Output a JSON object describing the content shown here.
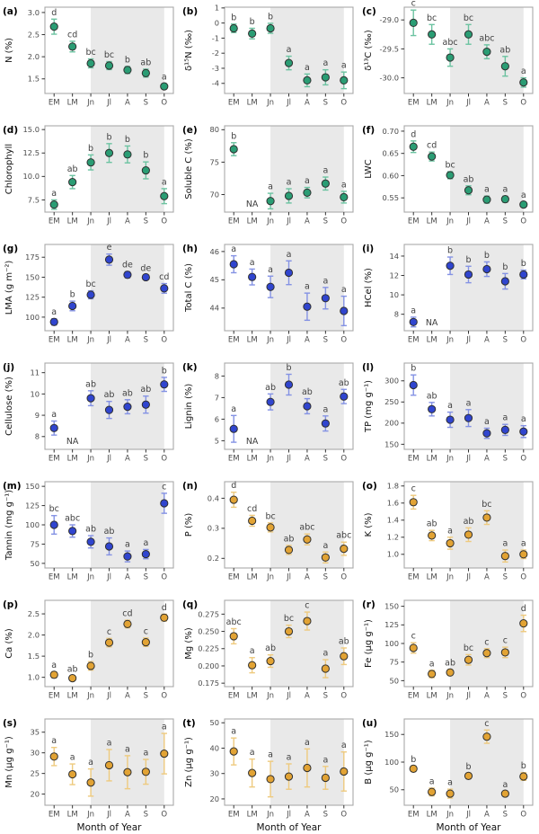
{
  "figure": {
    "style": {
      "band_color": "#e9e9e9",
      "frame_color": "#a9a9a9",
      "tick_color": "#333333",
      "tick_label_color": "#4a4a4a",
      "letter_color": "#3f3f3f",
      "tag_color": "#000000",
      "outline_color": "#2f2f2f",
      "groups": {
        "green": {
          "fill": "#2a9d74",
          "err": "#6cc3a1"
        },
        "blue": {
          "fill": "#3045cf",
          "err": "#8492e4"
        },
        "orange": {
          "fill": "#e2a334",
          "err": "#eeca7e"
        }
      }
    }
  },
  "chart_data": {
    "type": "scatter",
    "description": "21-panel leaf-trait seasonal means with SE error bars and significance letters",
    "x_categories": [
      "EM",
      "LM",
      "Jn",
      "Jl",
      "A",
      "S",
      "O"
    ],
    "xlabel": "Month of Year",
    "shaded_band_x": [
      2.5,
      6.5
    ],
    "na_label": "NA",
    "panels": [
      {
        "id": "a",
        "tag": "(a)",
        "ylabel": "N (%)",
        "group": "green",
        "ylim": [
          1.17,
          3.12
        ],
        "yticks": [
          [
            1.5,
            "1.5"
          ],
          [
            2.0,
            "2.0"
          ],
          [
            2.5,
            "2.5"
          ],
          [
            3.0,
            "3.0"
          ]
        ],
        "values": [
          2.68,
          2.23,
          1.85,
          1.8,
          1.7,
          1.63,
          1.33
        ],
        "errors": [
          0.17,
          0.12,
          0.1,
          0.09,
          0.08,
          0.09,
          0.06
        ],
        "letters": [
          "d",
          "cd",
          "bc",
          "bc",
          "b",
          "ab",
          "a"
        ],
        "na": []
      },
      {
        "id": "b",
        "tag": "(b)",
        "ylabel": "δ¹⁵N (‰)",
        "group": "green",
        "ylim": [
          -4.67,
          1.05
        ],
        "yticks": [
          [
            1,
            "1"
          ],
          [
            0,
            "0"
          ],
          [
            -1,
            "-1"
          ],
          [
            -2,
            "-2"
          ],
          [
            -3,
            "-3"
          ],
          [
            -4,
            "-4"
          ]
        ],
        "values": [
          -0.35,
          -0.7,
          -0.35,
          -2.65,
          -3.8,
          -3.6,
          -3.8
        ],
        "errors": [
          0.28,
          0.35,
          0.33,
          0.45,
          0.42,
          0.5,
          0.55
        ],
        "letters": [
          "b",
          "b",
          "b",
          "a",
          "a",
          "a",
          "a"
        ],
        "na": []
      },
      {
        "id": "c",
        "tag": "(c)",
        "ylabel": "δ¹³C (‰)",
        "group": "green",
        "ylim": [
          -30.27,
          -28.78
        ],
        "yticks": [
          [
            -29.0,
            "-29.0"
          ],
          [
            -29.5,
            "-29.5"
          ],
          [
            -30.0,
            "-30.0"
          ]
        ],
        "values": [
          -29.05,
          -29.25,
          -29.65,
          -29.25,
          -29.55,
          -29.8,
          -30.08
        ],
        "errors": [
          0.22,
          0.17,
          0.15,
          0.17,
          0.12,
          0.17,
          0.08
        ],
        "letters": [
          "c",
          "bc",
          "abc",
          "bc",
          "abc",
          "ab",
          "a"
        ],
        "na": []
      },
      {
        "id": "d",
        "tag": "(d)",
        "ylabel": "Chlorophyll",
        "group": "green",
        "ylim": [
          6.2,
          15.4
        ],
        "yticks": [
          [
            7.5,
            "7.5"
          ],
          [
            10.0,
            "10.0"
          ],
          [
            12.5,
            "12.5"
          ],
          [
            15.0,
            "15.0"
          ]
        ],
        "values": [
          7.0,
          9.4,
          11.5,
          12.5,
          12.35,
          10.65,
          7.9
        ],
        "errors": [
          0.5,
          0.7,
          0.8,
          1.0,
          0.9,
          0.9,
          0.8
        ],
        "letters": [
          "a",
          "ab",
          "b",
          "b",
          "b",
          "b",
          "a"
        ],
        "na": []
      },
      {
        "id": "e",
        "tag": "(e)",
        "ylabel": "Soluble C (%)",
        "group": "green",
        "ylim": [
          67.3,
          80.6
        ],
        "yticks": [
          [
            70,
            "70"
          ],
          [
            75,
            "75"
          ],
          [
            80,
            "80"
          ]
        ],
        "values": [
          77.0,
          null,
          69.0,
          69.8,
          70.3,
          71.7,
          69.6
        ],
        "errors": [
          1.0,
          null,
          1.2,
          1.1,
          0.8,
          1.0,
          0.9
        ],
        "letters": [
          "b",
          null,
          "a",
          "a",
          "a",
          "a",
          "a"
        ],
        "na": [
          1
        ]
      },
      {
        "id": "f",
        "tag": "(f)",
        "ylabel": "LWC",
        "group": "green",
        "ylim": [
          0.518,
          0.712
        ],
        "yticks": [
          [
            0.55,
            "0.55"
          ],
          [
            0.6,
            "0.60"
          ],
          [
            0.65,
            "0.65"
          ],
          [
            0.7,
            "0.70"
          ]
        ],
        "values": [
          0.665,
          0.643,
          0.601,
          0.567,
          0.546,
          0.547,
          0.535
        ],
        "errors": [
          0.013,
          0.01,
          0.008,
          0.01,
          0.008,
          0.007,
          0.006
        ],
        "letters": [
          "d",
          "cd",
          "bc",
          "ab",
          "a",
          "a",
          "a"
        ],
        "na": []
      },
      {
        "id": "g",
        "tag": "(g)",
        "ylabel": "LMA (g m⁻²)",
        "group": "blue",
        "ylim": [
          83,
          191
        ],
        "yticks": [
          [
            100,
            "100"
          ],
          [
            125,
            "125"
          ],
          [
            150,
            "150"
          ],
          [
            175,
            "175"
          ]
        ],
        "values": [
          94,
          114,
          128,
          172,
          153,
          150,
          136
        ],
        "errors": [
          4,
          6,
          5,
          7,
          4,
          3,
          6
        ],
        "letters": [
          "a",
          "b",
          "bc",
          "e",
          "de",
          "de",
          "cd"
        ],
        "na": []
      },
      {
        "id": "h",
        "tag": "(h)",
        "ylabel": "Total C (%)",
        "group": "blue",
        "ylim": [
          43.2,
          46.25
        ],
        "yticks": [
          [
            44,
            "44"
          ],
          [
            45,
            "45"
          ],
          [
            46,
            "46"
          ]
        ],
        "values": [
          45.55,
          45.1,
          44.75,
          45.25,
          44.05,
          44.35,
          43.9
        ],
        "errors": [
          0.3,
          0.28,
          0.38,
          0.42,
          0.48,
          0.38,
          0.52
        ],
        "letters": [
          "a",
          "a",
          "a",
          "a",
          "a",
          "a",
          "a"
        ],
        "na": []
      },
      {
        "id": "i",
        "tag": "(i)",
        "ylabel": "HCel (%)",
        "group": "blue",
        "ylim": [
          6.3,
          15.2
        ],
        "yticks": [
          [
            8,
            "8"
          ],
          [
            10,
            "10"
          ],
          [
            12,
            "12"
          ],
          [
            14,
            "14"
          ]
        ],
        "values": [
          7.2,
          null,
          13.0,
          12.1,
          12.65,
          11.4,
          12.1
        ],
        "errors": [
          0.5,
          null,
          0.9,
          0.85,
          0.75,
          0.8,
          0.45
        ],
        "letters": [
          "a",
          null,
          "b",
          "b",
          "b",
          "b",
          "b"
        ],
        "na": [
          1
        ]
      },
      {
        "id": "j",
        "tag": "(j)",
        "ylabel": "Cellulose (%)",
        "group": "blue",
        "ylim": [
          7.4,
          11.45
        ],
        "yticks": [
          [
            8,
            "8"
          ],
          [
            9,
            "9"
          ],
          [
            10,
            "10"
          ],
          [
            11,
            "11"
          ]
        ],
        "values": [
          8.4,
          null,
          9.8,
          9.25,
          9.4,
          9.5,
          10.45
        ],
        "errors": [
          0.33,
          null,
          0.35,
          0.4,
          0.33,
          0.4,
          0.33
        ],
        "letters": [
          "a",
          null,
          "ab",
          "ab",
          "ab",
          "ab",
          "b"
        ],
        "na": [
          1
        ]
      },
      {
        "id": "k",
        "tag": "(k)",
        "ylabel": "Lignin (%)",
        "group": "blue",
        "ylim": [
          4.6,
          8.6
        ],
        "yticks": [
          [
            5,
            "5"
          ],
          [
            6,
            "6"
          ],
          [
            7,
            "7"
          ],
          [
            8,
            "8"
          ]
        ],
        "values": [
          5.55,
          null,
          6.8,
          7.6,
          6.6,
          5.8,
          7.05
        ],
        "errors": [
          0.62,
          null,
          0.37,
          0.48,
          0.35,
          0.35,
          0.33
        ],
        "letters": [
          "a",
          null,
          "ab",
          "b",
          "ab",
          "a",
          "ab"
        ],
        "na": [
          1
        ]
      },
      {
        "id": "l",
        "tag": "(l)",
        "ylabel": "TP (mg g⁻¹)",
        "group": "blue",
        "ylim": [
          138,
          342
        ],
        "yticks": [
          [
            150,
            "150"
          ],
          [
            200,
            "200"
          ],
          [
            250,
            "250"
          ],
          [
            300,
            "300"
          ]
        ],
        "values": [
          290,
          233,
          208,
          212,
          176,
          184,
          180
        ],
        "errors": [
          24,
          16,
          18,
          20,
          12,
          13,
          14
        ],
        "letters": [
          "b",
          "ab",
          "a",
          "a",
          "a",
          "a",
          "a"
        ],
        "na": []
      },
      {
        "id": "m",
        "tag": "(m)",
        "ylabel": "Tannin (mg g⁻¹)",
        "group": "blue",
        "ylim": [
          44,
          156
        ],
        "yticks": [
          [
            50,
            "50"
          ],
          [
            75,
            "75"
          ],
          [
            100,
            "100"
          ],
          [
            125,
            "125"
          ],
          [
            150,
            "150"
          ]
        ],
        "values": [
          100,
          92,
          78,
          72,
          59,
          62,
          128
        ],
        "errors": [
          12,
          8,
          8,
          11,
          7,
          6,
          13
        ],
        "letters": [
          "bc",
          "abc",
          "ab",
          "ab",
          "a",
          "a",
          "c"
        ],
        "na": []
      },
      {
        "id": "n",
        "tag": "(n)",
        "ylabel": "P (%)",
        "group": "orange",
        "ylim": [
          0.168,
          0.455
        ],
        "yticks": [
          [
            0.2,
            "0.2"
          ],
          [
            0.3,
            "0.3"
          ],
          [
            0.4,
            "0.4"
          ]
        ],
        "values": [
          0.395,
          0.325,
          0.303,
          0.228,
          0.263,
          0.203,
          0.232
        ],
        "errors": [
          0.025,
          0.018,
          0.015,
          0.015,
          0.018,
          0.018,
          0.022
        ],
        "letters": [
          "d",
          "cd",
          "bc",
          "ab",
          "abc",
          "a",
          "abc"
        ],
        "na": []
      },
      {
        "id": "o",
        "tag": "(o)",
        "ylabel": "K (%)",
        "group": "orange",
        "ylim": [
          0.84,
          1.85
        ],
        "yticks": [
          [
            1.0,
            "1.0"
          ],
          [
            1.2,
            "1.2"
          ],
          [
            1.4,
            "1.4"
          ],
          [
            1.6,
            "1.6"
          ],
          [
            1.8,
            "1.8"
          ]
        ],
        "values": [
          1.61,
          1.22,
          1.13,
          1.23,
          1.43,
          0.98,
          1.0
        ],
        "errors": [
          0.08,
          0.06,
          0.07,
          0.08,
          0.08,
          0.07,
          0.05
        ],
        "letters": [
          "c",
          "ab",
          "a",
          "ab",
          "bc",
          "a",
          "a"
        ],
        "na": []
      },
      {
        "id": "p",
        "tag": "(p)",
        "ylabel": "Ca (%)",
        "group": "orange",
        "ylim": [
          0.78,
          2.82
        ],
        "yticks": [
          [
            1.0,
            "1.0"
          ],
          [
            1.5,
            "1.5"
          ],
          [
            2.0,
            "2.0"
          ],
          [
            2.5,
            "2.5"
          ]
        ],
        "values": [
          1.06,
          0.98,
          1.27,
          1.82,
          2.26,
          1.83,
          2.41
        ],
        "errors": [
          0.07,
          0.06,
          0.1,
          0.1,
          0.09,
          0.1,
          0.08
        ],
        "letters": [
          "a",
          "ab",
          "b",
          "c",
          "cd",
          "c",
          "d"
        ],
        "na": []
      },
      {
        "id": "q",
        "tag": "(q)",
        "ylabel": "Mg (%)",
        "group": "orange",
        "ylim": [
          0.17,
          0.295
        ],
        "yticks": [
          [
            0.175,
            "0.175"
          ],
          [
            0.2,
            "0.200"
          ],
          [
            0.225,
            "0.225"
          ],
          [
            0.25,
            "0.250"
          ],
          [
            0.275,
            "0.275"
          ]
        ],
        "values": [
          0.243,
          0.201,
          0.207,
          0.25,
          0.265,
          0.196,
          0.214
        ],
        "errors": [
          0.011,
          0.011,
          0.009,
          0.009,
          0.013,
          0.013,
          0.012
        ],
        "letters": [
          "abc",
          "a",
          "ab",
          "bc",
          "c",
          "a",
          "ab"
        ],
        "na": []
      },
      {
        "id": "r",
        "tag": "(r)",
        "ylabel": "Fe (µg g⁻¹)",
        "group": "orange",
        "ylim": [
          42,
          158
        ],
        "yticks": [
          [
            50,
            "50"
          ],
          [
            75,
            "75"
          ],
          [
            100,
            "100"
          ],
          [
            125,
            "125"
          ],
          [
            150,
            "150"
          ]
        ],
        "values": [
          94,
          59,
          61,
          78,
          87,
          88,
          127
        ],
        "errors": [
          7,
          5,
          4,
          7,
          6,
          7,
          11
        ],
        "letters": [
          "c",
          "a",
          "ab",
          "bc",
          "c",
          "c",
          "d"
        ],
        "na": []
      },
      {
        "id": "s",
        "tag": "(s)",
        "ylabel": "Mn (µg g⁻¹)",
        "group": "orange",
        "ylim": [
          17.3,
          38.2
        ],
        "yticks": [
          [
            20,
            "20"
          ],
          [
            25,
            "25"
          ],
          [
            30,
            "30"
          ],
          [
            35,
            "35"
          ]
        ],
        "values": [
          29.1,
          24.8,
          22.8,
          27.0,
          25.3,
          25.4,
          29.8
        ],
        "errors": [
          2.2,
          2.5,
          3.3,
          3.8,
          4.0,
          3.0,
          4.9
        ],
        "letters": [
          "a",
          "a",
          "a",
          "a",
          "a",
          "a",
          "a"
        ],
        "na": []
      },
      {
        "id": "t",
        "tag": "(t)",
        "ylabel": "Zn (µg g⁻¹)",
        "group": "orange",
        "ylim": [
          17.5,
          51.5
        ],
        "yticks": [
          [
            20,
            "20"
          ],
          [
            30,
            "30"
          ],
          [
            40,
            "40"
          ],
          [
            50,
            "50"
          ]
        ],
        "values": [
          38.7,
          30.2,
          27.8,
          28.8,
          32.2,
          28.3,
          30.8
        ],
        "errors": [
          5.3,
          5.5,
          7.0,
          5.0,
          7.5,
          4.5,
          7.7
        ],
        "letters": [
          "a",
          "a",
          "a",
          "a",
          "a",
          "a",
          "a"
        ],
        "na": []
      },
      {
        "id": "u",
        "tag": "(u)",
        "ylabel": "B (µg g⁻¹)",
        "group": "orange",
        "ylim": [
          22,
          178
        ],
        "yticks": [
          [
            50,
            "50"
          ],
          [
            100,
            "100"
          ],
          [
            150,
            "150"
          ]
        ],
        "values": [
          88,
          46,
          43,
          75,
          146,
          43,
          74
        ],
        "errors": [
          5,
          7,
          8,
          5,
          12,
          4,
          7
        ],
        "letters": [
          "b",
          "a",
          "a",
          "b",
          "c",
          "a",
          "b"
        ],
        "na": []
      }
    ]
  }
}
